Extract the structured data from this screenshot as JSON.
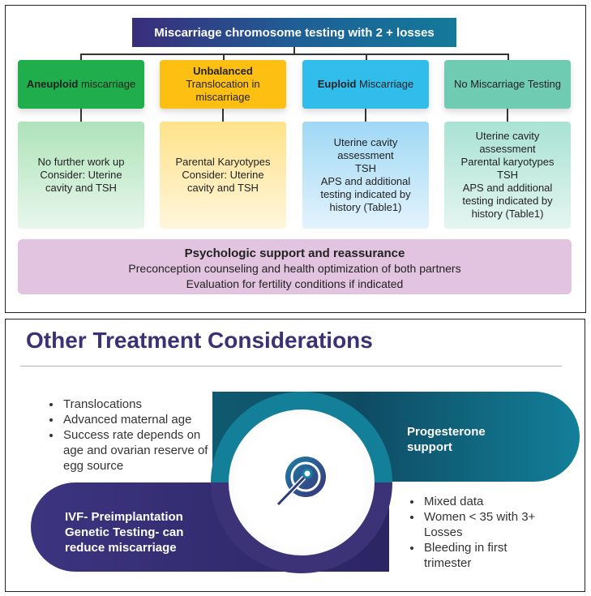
{
  "flowchart": {
    "title": "Miscarriage chromosome testing with 2 + losses",
    "categories": [
      {
        "bold": "Aneuploid",
        "rest": " miscarriage",
        "content": [
          "No further work up",
          "Consider:  Uterine",
          "cavity and TSH"
        ],
        "color": "#1fae4b"
      },
      {
        "bold": "Unbalanced",
        "rest": "Translocation in miscarriage",
        "content": [
          "Parental Karyotypes",
          "Consider: Uterine",
          "cavity and TSH"
        ],
        "color": "#fdbf12"
      },
      {
        "bold": "Euploid",
        "rest": " Miscarriage",
        "content": [
          "Uterine cavity",
          "assessment",
          "TSH",
          "APS and additional",
          "testing indicated by",
          "history (Table1)"
        ],
        "color": "#30bdec"
      },
      {
        "bold": "",
        "rest": "No Miscarriage  Testing",
        "content": [
          "Uterine cavity",
          "assessment",
          "Parental karyotypes",
          "TSH",
          "APS and additional",
          "testing indicated by",
          "history (Table1)"
        ],
        "color": "#6fcbb2"
      }
    ],
    "footer": {
      "title": "Psychologic support and reassurance",
      "lines": [
        "Preconception counseling and health optimization of both partners",
        "Evaluation for fertility conditions if indicated"
      ]
    }
  },
  "treatments": {
    "title": "Other Treatment Considerations",
    "ivf_bullets": [
      "Translocations",
      "Advanced maternal age",
      "Success rate depends on age and ovarian reserve of egg source"
    ],
    "progesterone_label": "Progesterone support",
    "ivf_label": "IVF- Preimplantation Genetic Testing- can reduce miscarriage",
    "progesterone_bullets": [
      "Mixed data",
      "Women < 35 with 3+ Losses",
      "Bleeding in first trimester"
    ],
    "center_icon": "egg-cell-sperm-icon",
    "colors": {
      "teal": "#137f99",
      "purple": "#3b3278",
      "title": "#3b3175"
    }
  }
}
